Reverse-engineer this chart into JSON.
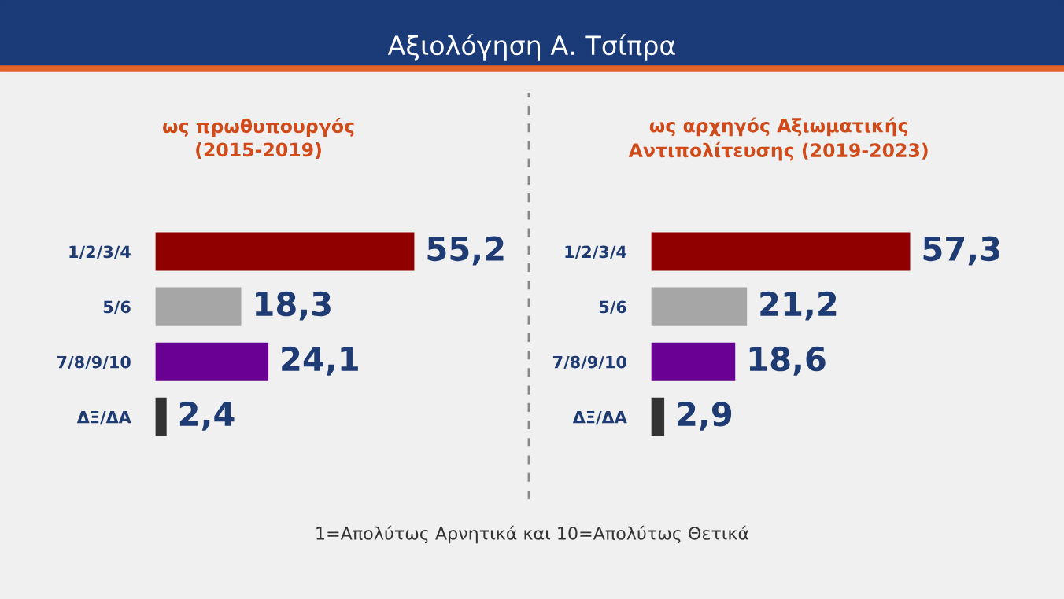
{
  "chart_data": [
    {
      "type": "bar",
      "orientation": "horizontal",
      "title": "Αξιολόγηση Α. Τσίπρα",
      "subtitle": "ως πρωθυπουργός\n(2015-2019)",
      "categories": [
        "1/2/3/4",
        "5/6",
        "7/8/9/10",
        "ΔΞ/ΔΑ"
      ],
      "values": [
        55.2,
        18.3,
        24.1,
        2.4
      ],
      "colors": [
        "#900000",
        "#a6a6a6",
        "#6a0094",
        "#333333"
      ],
      "value_labels": [
        "55,2",
        "18,3",
        "24,1",
        "2,4"
      ],
      "tick_labels": "y",
      "grid": false,
      "legend": false
    },
    {
      "type": "bar",
      "orientation": "horizontal",
      "subtitle": "ως αρχηγός Αξιωματικής\nΑντιπολίτευσης (2019-2023)",
      "categories": [
        "1/2/3/4",
        "5/6",
        "7/8/9/10",
        "ΔΞ/ΔΑ"
      ],
      "values": [
        57.3,
        21.2,
        18.6,
        2.9
      ],
      "colors": [
        "#900000",
        "#a6a6a6",
        "#6a0094",
        "#333333"
      ],
      "value_labels": [
        "57,3",
        "21,2",
        "18,6",
        "2,9"
      ],
      "tick_labels": "y",
      "grid": false,
      "legend": false,
      "annotations": [
        "1=Απολύτως Αρνητικά και 10=Απολύτως Θετικά"
      ]
    }
  ]
}
